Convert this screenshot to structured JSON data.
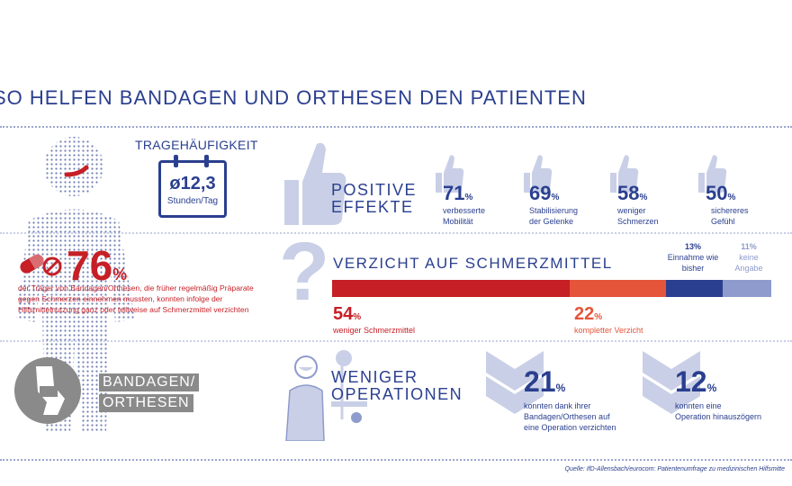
{
  "title": "SO HELFEN BANDAGEN UND ORTHESEN DEN PATIENTEN",
  "colors": {
    "primary_blue": "#2a3f8f",
    "light_blue": "#c9cfe6",
    "red": "#c61f26",
    "orange": "#e5553a",
    "mid_blue": "#8e9bcc",
    "grey": "#8a8a8a"
  },
  "frequency": {
    "title": "TRAGEHÄUFIGKEIT",
    "value": "ø12,3",
    "unit": "Stunden/Tag",
    "icon": "calendar-icon"
  },
  "positive": {
    "label_line1": "POSITIVE",
    "label_line2": "EFFEKTE",
    "icon": "thumbs-up-icon",
    "items": [
      {
        "value": "71",
        "unit": "%",
        "desc_line1": "verbesserte",
        "desc_line2": "Mobilität"
      },
      {
        "value": "69",
        "unit": "%",
        "desc_line1": "Stabilisierung",
        "desc_line2": "der Gelenke"
      },
      {
        "value": "58",
        "unit": "%",
        "desc_line1": "weniger",
        "desc_line2": "Schmerzen"
      },
      {
        "value": "50",
        "unit": "%",
        "desc_line1": "sichereres",
        "desc_line2": "Gefühl"
      }
    ]
  },
  "stat76": {
    "value": "76",
    "unit": "%",
    "icon": "pills-icon",
    "desc_line1": "der Träger von Bandagen/Orthesen, die früher regelmäßig Präparate",
    "desc_line2": "gegen Schmerzen einnehmen  mussten, konnten infolge der",
    "desc_line3": "Hilfsmittelnutzung ganz oder teilweise auf  Schmerzmittel verzichten"
  },
  "painkiller": {
    "title": "VERZICHT AUF SCHMERZMITTEL",
    "icon": "question-mark-icon",
    "seg1": {
      "value": "54",
      "unit": "%",
      "label": "weniger Schmerzmittel"
    },
    "seg2": {
      "value": "22",
      "unit": "%",
      "label": "kompletter Verzicht"
    },
    "seg3": {
      "value": "13%",
      "label_line1": "Einnahme wie",
      "label_line2": "bisher"
    },
    "seg4": {
      "value": "11%",
      "label_line1": "keine",
      "label_line2": "Angabe"
    }
  },
  "chart_data": {
    "type": "bar",
    "title": "VERZICHT AUF SCHMERZMITTEL",
    "stacked": true,
    "categories": [
      "weniger Schmerzmittel",
      "kompletter Verzicht",
      "Einnahme wie bisher",
      "keine Angabe"
    ],
    "values": [
      54,
      22,
      13,
      11
    ],
    "colors": [
      "#c61f26",
      "#e5553a",
      "#2a3f8f",
      "#8e9bcc"
    ],
    "xlim": [
      0,
      100
    ]
  },
  "bandagen": {
    "line1": "BANDAGEN/",
    "line2": "ORTHESEN",
    "icon": "knee-brace-icon"
  },
  "operations": {
    "label_line1": "WENIGER",
    "label_line2": "OPERATIONEN",
    "icon": "surgeon-icon",
    "items": [
      {
        "value": "21",
        "unit": "%",
        "desc_line1": "konnten dank ihrer",
        "desc_line2": "Bandagen/Orthesen auf",
        "desc_line3": "eine Operation verzichten"
      },
      {
        "value": "12",
        "unit": "%",
        "desc_line1": "konnten eine",
        "desc_line2": "Operation hinauszögern",
        "desc_line3": ""
      }
    ]
  },
  "source": "Quelle: IfD-Allensbach/eurocom: Patientenumfrage zu medizinischen Hilfsmitte"
}
